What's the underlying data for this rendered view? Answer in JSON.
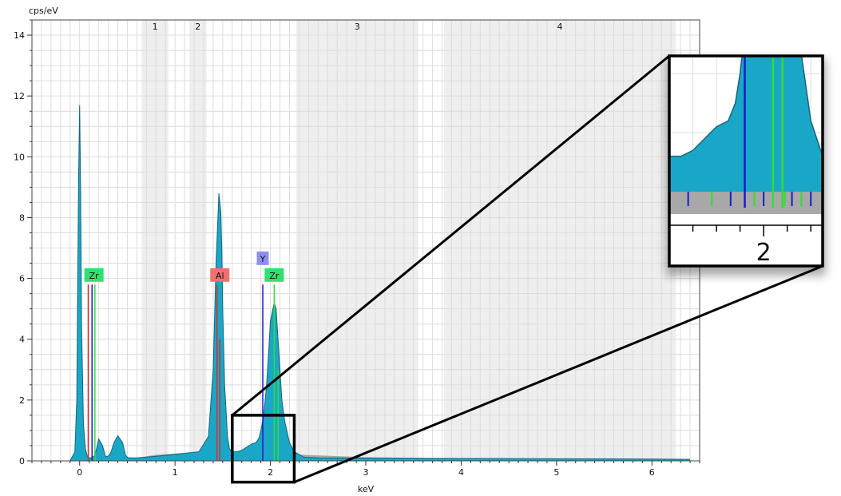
{
  "chart_data": {
    "type": "area",
    "title": "",
    "ylabel": "cps/eV",
    "xlabel": "keV",
    "xlim": [
      -0.5,
      6.5
    ],
    "ylim": [
      0,
      14.5
    ],
    "x_ticks": [
      0,
      1,
      2,
      3,
      4,
      5,
      6
    ],
    "y_ticks": [
      0,
      2,
      4,
      6,
      8,
      10,
      12,
      14
    ],
    "grid": true,
    "colors": {
      "spectrum": "#1aa7c7",
      "spectrum_edge": "#17647a",
      "background": "#a8a8a8",
      "region": "#eeeeee",
      "grid": "#dcdcdc",
      "zr_marker": "#2fe072",
      "al_marker": "#f07070",
      "y_marker": "#8f8ff2",
      "blue_line": "#1a1acc",
      "green_line": "#33dd33",
      "red_line": "#d03030"
    },
    "regions": [
      {
        "label": "1",
        "start": 0.65,
        "end": 0.93
      },
      {
        "label": "2",
        "start": 1.15,
        "end": 1.33
      },
      {
        "label": "3",
        "start": 2.27,
        "end": 3.55
      },
      {
        "label": "4",
        "start": 3.82,
        "end": 6.25
      }
    ],
    "spectrum": {
      "x": [
        -0.1,
        -0.05,
        -0.03,
        -0.02,
        -0.01,
        0.0,
        0.01,
        0.02,
        0.04,
        0.06,
        0.08,
        0.1,
        0.12,
        0.15,
        0.17,
        0.2,
        0.24,
        0.27,
        0.3,
        0.33,
        0.36,
        0.4,
        0.45,
        0.48,
        0.5,
        0.52,
        0.54,
        0.56,
        0.6,
        0.7,
        0.9,
        1.1,
        1.25,
        1.35,
        1.4,
        1.43,
        1.46,
        1.48,
        1.49,
        1.5,
        1.52,
        1.55,
        1.57,
        1.6,
        1.65,
        1.7,
        1.75,
        1.8,
        1.85,
        1.88,
        1.9,
        1.93,
        1.96,
        1.98,
        2.0,
        2.02,
        2.04,
        2.06,
        2.08,
        2.1,
        2.12,
        2.15,
        2.2,
        2.25,
        2.35,
        2.5,
        3.0,
        4.0,
        5.0,
        6.0,
        6.4
      ],
      "y": [
        0,
        0.3,
        2.0,
        6.0,
        9.5,
        11.7,
        9.0,
        4.5,
        1.2,
        0.4,
        0.15,
        0.1,
        0.1,
        0.15,
        0.3,
        0.72,
        0.5,
        0.15,
        0.15,
        0.3,
        0.6,
        0.83,
        0.6,
        0.2,
        0.12,
        0.1,
        0.1,
        0.1,
        0.1,
        0.12,
        0.18,
        0.25,
        0.3,
        0.8,
        3.0,
        6.5,
        8.8,
        8.2,
        7.0,
        5.0,
        2.5,
        0.8,
        0.4,
        0.3,
        0.3,
        0.35,
        0.45,
        0.55,
        0.6,
        0.75,
        1.0,
        1.5,
        2.5,
        3.5,
        4.6,
        4.9,
        5.2,
        5.0,
        4.0,
        3.0,
        2.0,
        1.3,
        0.6,
        0.3,
        0.12,
        0.1,
        0.09,
        0.08,
        0.07,
        0.06,
        0.05
      ]
    },
    "background_fill": {
      "x": [
        -0.1,
        0.5,
        0.8,
        1.2,
        1.5,
        2.0,
        2.5,
        3.0,
        4.0,
        5.0,
        6.0,
        6.4
      ],
      "y": [
        0.02,
        0.05,
        0.2,
        0.28,
        0.3,
        0.25,
        0.18,
        0.12,
        0.08,
        0.06,
        0.05,
        0.04
      ]
    },
    "line_markers": [
      {
        "x": 0.09,
        "color": "red",
        "height": 5.8
      },
      {
        "x": 0.13,
        "color": "blue",
        "height": 5.8
      },
      {
        "x": 0.16,
        "color": "green",
        "height": 5.8
      },
      {
        "x": 1.44,
        "color": "red",
        "height": 5.8
      },
      {
        "x": 1.47,
        "color": "red",
        "height": 4.0
      },
      {
        "x": 1.92,
        "color": "blue",
        "height": 5.8
      },
      {
        "x": 2.04,
        "color": "green",
        "height": 5.8
      },
      {
        "x": 2.08,
        "color": "green",
        "height": 3.0
      }
    ],
    "peak_labels": [
      {
        "text": "Zr",
        "x": 0.15,
        "y": 6.1,
        "kind": "zr"
      },
      {
        "text": "Al",
        "x": 1.47,
        "y": 6.1,
        "kind": "al"
      },
      {
        "text": "Y",
        "x": 1.92,
        "y": 6.65,
        "kind": "y"
      },
      {
        "text": "Zr",
        "x": 2.04,
        "y": 6.1,
        "kind": "zr"
      }
    ],
    "zoom": {
      "source_xlim": [
        1.6,
        2.25
      ],
      "source_ylim": [
        -0.7,
        1.5
      ],
      "inset_tick_label": "2"
    }
  }
}
